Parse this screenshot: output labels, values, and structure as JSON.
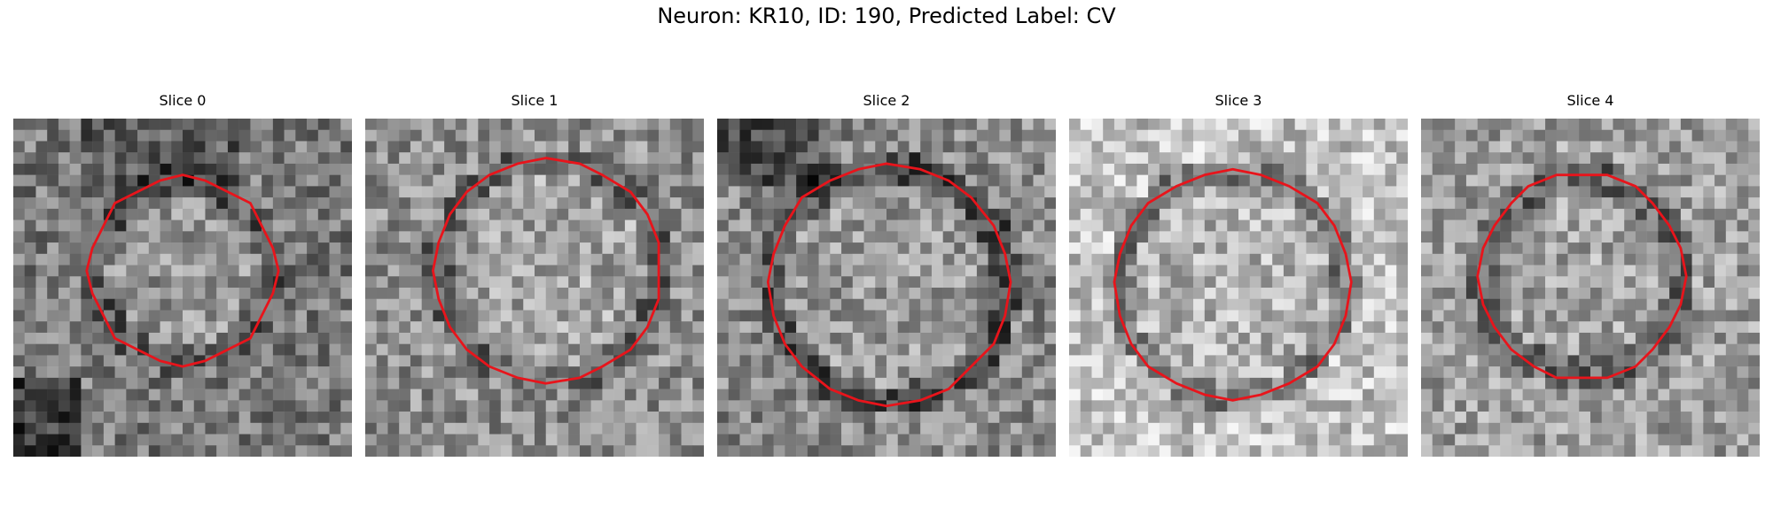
{
  "figure": {
    "title": "Neuron: KR10, ID: 190, Predicted Label: CV"
  },
  "colors": {
    "contour": "#e8141b",
    "background": "#ffffff"
  },
  "panels": [
    {
      "title": "Slice 0"
    },
    {
      "title": "Slice 1"
    },
    {
      "title": "Slice 2"
    },
    {
      "title": "Slice 3"
    },
    {
      "title": "Slice 4"
    }
  ]
}
